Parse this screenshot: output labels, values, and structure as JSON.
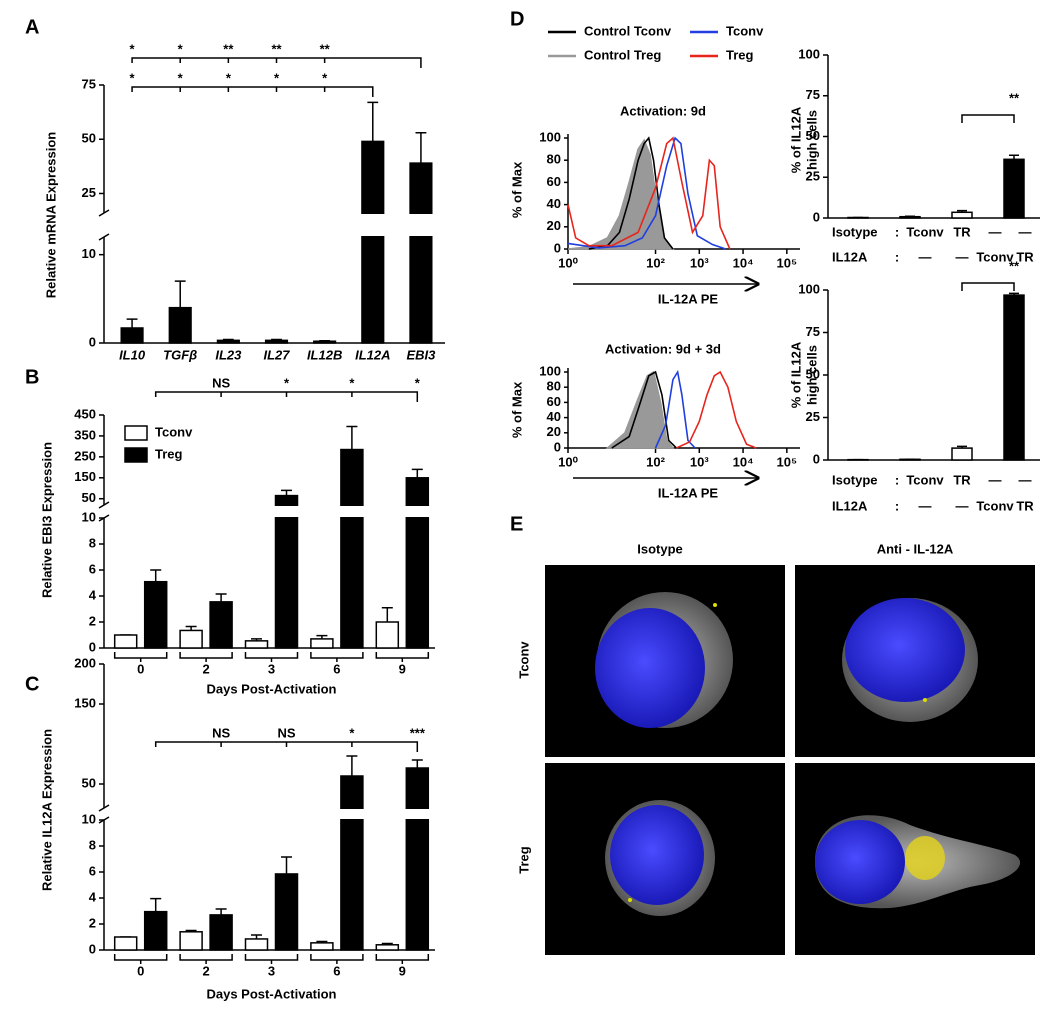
{
  "chart_data": [
    {
      "panel": "A",
      "type": "bar",
      "ylabel": "Relative mRNA Expression",
      "categories": [
        "IL10",
        "TGFβ",
        "IL23",
        "IL27",
        "IL12B",
        "IL12A",
        "EBI3"
      ],
      "series": [
        {
          "color": "#000000",
          "values": [
            1.7,
            4,
            0.3,
            0.3,
            0.2,
            49,
            39
          ],
          "errors": [
            1,
            3,
            0.1,
            0.1,
            0.05,
            18,
            14
          ]
        }
      ],
      "ylim": [
        0,
        75
      ],
      "ybreak": [
        12,
        16
      ],
      "yticks": [
        0,
        10,
        25,
        50,
        75
      ],
      "significance": [
        {
          "labels": [
            "*",
            "*",
            "**",
            "**",
            "**"
          ]
        },
        {
          "labels": [
            "*",
            "*",
            "*",
            "*",
            "*"
          ]
        }
      ]
    },
    {
      "panel": "B",
      "type": "bar",
      "ylabel": "Relative EBI3 Expression",
      "xlabel": "Days  Post-Activation",
      "categories": [
        "0",
        "2",
        "3",
        "6",
        "9"
      ],
      "series": [
        {
          "name": "Tconv",
          "color": "#ffffff",
          "values": [
            1,
            1.35,
            0.55,
            0.7,
            2
          ],
          "errors": [
            0,
            0.3,
            0.15,
            0.25,
            1.1
          ]
        },
        {
          "name": "Treg",
          "color": "#000000",
          "values": [
            5.1,
            3.55,
            65,
            285,
            150
          ],
          "errors": [
            0.9,
            0.6,
            25,
            110,
            40
          ]
        }
      ],
      "ylim": [
        0,
        450
      ],
      "ybreak": [
        10,
        20
      ],
      "yticks": [
        0,
        2,
        4,
        6,
        8,
        10,
        50,
        150,
        250,
        350,
        450
      ],
      "significance": [
        {
          "labels": [
            "NS",
            "*",
            "*",
            "*"
          ]
        }
      ]
    },
    {
      "panel": "C",
      "type": "bar",
      "ylabel": "Relative IL12A Expression",
      "xlabel": "Days  Post-Activation",
      "categories": [
        "0",
        "2",
        "3",
        "6",
        "9"
      ],
      "series": [
        {
          "color": "#ffffff",
          "values": [
            1,
            1.4,
            0.85,
            0.55,
            0.4
          ],
          "errors": [
            0,
            0.1,
            0.3,
            0.1,
            0.1
          ]
        },
        {
          "color": "#000000",
          "values": [
            2.95,
            2.7,
            5.85,
            60,
            70
          ],
          "errors": [
            1,
            0.45,
            1.3,
            25,
            10
          ]
        }
      ],
      "ylim": [
        0,
        200
      ],
      "ybreak": [
        10,
        20
      ],
      "yticks": [
        0,
        2,
        4,
        6,
        8,
        10,
        50,
        150,
        200
      ],
      "significance": [
        {
          "labels": [
            "NS",
            "NS",
            "*",
            "***"
          ]
        }
      ]
    },
    {
      "panel": "D",
      "type": "line",
      "title": "Activation:  9d",
      "xlabel": "IL-12A PE",
      "ylabel": "% of Max",
      "xscale": "log",
      "xlim": [
        1,
        200000
      ],
      "xticks": [
        {
          "value": 1,
          "label": "10⁰"
        },
        {
          "value": 100,
          "label": "10²"
        },
        {
          "value": 1000,
          "label": "10³"
        },
        {
          "value": 10000,
          "label": "10⁴"
        },
        {
          "value": 100000,
          "label": "10⁵"
        }
      ],
      "ylim": [
        0,
        100
      ],
      "yticks": [
        0,
        20,
        40,
        60,
        80,
        100
      ],
      "legend": true,
      "series": [
        {
          "name": "Control Tconv",
          "color": "#000000",
          "x": [
            3,
            8,
            15,
            25,
            40,
            55,
            70,
            90,
            120,
            160,
            250
          ],
          "values": [
            0,
            3,
            15,
            45,
            80,
            95,
            100,
            80,
            40,
            10,
            0
          ]
        },
        {
          "name": "Control Treg",
          "color": "#999999",
          "fill": true,
          "x": [
            1,
            3,
            8,
            15,
            25,
            40,
            55,
            75,
            100,
            150,
            250
          ],
          "values": [
            0,
            2,
            10,
            30,
            60,
            90,
            98,
            85,
            50,
            10,
            0
          ]
        },
        {
          "name": "Tconv",
          "color": "#1f3fe0",
          "x": [
            1,
            5,
            20,
            50,
            100,
            180,
            280,
            380,
            550,
            900,
            2000,
            4000
          ],
          "values": [
            5,
            1,
            3,
            10,
            30,
            75,
            100,
            95,
            50,
            12,
            4,
            0
          ]
        },
        {
          "name": "Treg",
          "color": "#e8251c",
          "x": [
            1,
            1.5,
            3,
            10,
            40,
            100,
            180,
            250,
            400,
            700,
            1200,
            1700,
            2200,
            3000,
            5000
          ],
          "values": [
            40,
            10,
            3,
            3,
            15,
            55,
            95,
            100,
            60,
            15,
            30,
            80,
            75,
            20,
            0
          ]
        }
      ]
    },
    {
      "type": "line",
      "title": "Activation:  9d + 3d",
      "xlabel": "IL-12A PE",
      "ylabel": "% of Max",
      "xscale": "log",
      "xlim": [
        1,
        200000
      ],
      "xticks": [
        {
          "value": 1,
          "label": "10⁰"
        },
        {
          "value": 100,
          "label": "10²"
        },
        {
          "value": 1000,
          "label": "10³"
        },
        {
          "value": 10000,
          "label": "10⁴"
        },
        {
          "value": 100000,
          "label": "10⁵"
        }
      ],
      "ylim": [
        0,
        100
      ],
      "yticks": [
        0,
        20,
        40,
        60,
        80,
        100
      ],
      "series": [
        {
          "color": "#000000",
          "x": [
            10,
            25,
            45,
            70,
            100,
            140,
            200,
            300
          ],
          "values": [
            0,
            15,
            60,
            95,
            100,
            70,
            10,
            0
          ]
        },
        {
          "color": "#999999",
          "fill": true,
          "x": [
            8,
            20,
            40,
            65,
            90,
            130,
            180,
            250
          ],
          "values": [
            0,
            20,
            65,
            95,
            100,
            60,
            10,
            0
          ]
        },
        {
          "color": "#1f3fe0",
          "x": [
            100,
            170,
            250,
            320,
            400,
            550,
            800
          ],
          "values": [
            0,
            30,
            90,
            100,
            70,
            10,
            0
          ]
        },
        {
          "color": "#e8251c",
          "x": [
            300,
            600,
            1000,
            1500,
            2200,
            3000,
            4500,
            7000,
            12000,
            20000
          ],
          "values": [
            0,
            8,
            35,
            70,
            95,
            100,
            80,
            35,
            5,
            0
          ]
        }
      ]
    },
    {
      "type": "bar",
      "ylabel": [
        "% of IL12A",
        "high cells"
      ],
      "series": [
        {
          "colors": [
            "#ffffff",
            "#ffffff",
            "#ffffff",
            "#000000"
          ],
          "values": [
            0.3,
            0.8,
            3.5,
            36
          ],
          "errors": [
            0,
            0.3,
            1,
            2.5
          ]
        }
      ],
      "ylim": [
        0,
        100
      ],
      "yticks": [
        0,
        25,
        50,
        75,
        100
      ],
      "significance": [
        {
          "labels": [
            "**"
          ]
        }
      ],
      "conditions": [
        {
          "name": "Isotype",
          "separator": ":",
          "cells": [
            "Tconv",
            "TR",
            "—",
            "—"
          ]
        },
        {
          "name": "IL12A",
          "separator": ":",
          "cells": [
            "—",
            "—",
            "Tconv",
            "TR"
          ]
        }
      ]
    },
    {
      "type": "bar",
      "ylabel": [
        "% of IL12A",
        "high cells"
      ],
      "series": [
        {
          "colors": [
            "#ffffff",
            "#ffffff",
            "#ffffff",
            "#000000"
          ],
          "values": [
            0.2,
            0.4,
            7,
            97
          ],
          "errors": [
            0,
            0,
            1,
            1
          ]
        }
      ],
      "ylim": [
        0,
        100
      ],
      "yticks": [
        0,
        25,
        50,
        75,
        100
      ],
      "significance": [
        {
          "labels": [
            "**"
          ]
        }
      ],
      "conditions": [
        {
          "name": "Isotype",
          "separator": ":",
          "cells": [
            "Tconv",
            "TR",
            "—",
            "—"
          ]
        },
        {
          "name": "IL12A",
          "separator": ":",
          "cells": [
            "—",
            "—",
            "Tconv",
            "TR"
          ]
        }
      ]
    }
  ],
  "panel_e": {
    "label": "E",
    "columns": [
      "Isotype",
      "Anti - IL-12A"
    ],
    "rows": [
      "Tconv",
      "Treg"
    ]
  }
}
